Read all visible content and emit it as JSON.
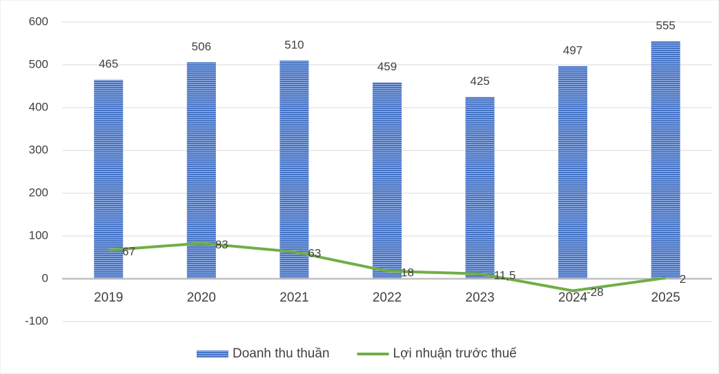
{
  "chart_data": {
    "type": "bar",
    "categories": [
      "2019",
      "2020",
      "2021",
      "2022",
      "2023",
      "2024",
      "2025"
    ],
    "series": [
      {
        "name": "Doanh thu thuần",
        "type": "bar",
        "color": "#4472c4",
        "values": [
          465,
          506,
          510,
          459,
          425,
          497,
          555
        ]
      },
      {
        "name": "Lợi nhuận trước thuế",
        "type": "line",
        "color": "#70ad47",
        "values": [
          67,
          83,
          63,
          18,
          11.5,
          -28,
          2
        ],
        "value_labels": [
          "67",
          "83",
          "63",
          "18",
          "11,5",
          "-28",
          "2"
        ]
      }
    ],
    "ylim": [
      -100,
      600
    ],
    "yticks": [
      -100,
      0,
      100,
      200,
      300,
      400,
      500,
      600
    ],
    "grid": true,
    "legend": "bottom"
  }
}
